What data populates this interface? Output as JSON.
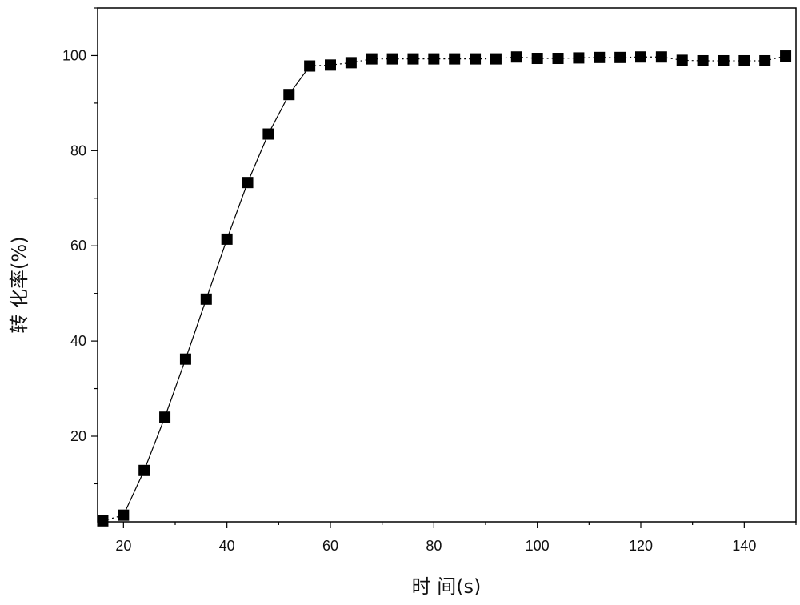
{
  "chart_data": {
    "type": "line",
    "title": "",
    "xlabel": "时 间(s)",
    "ylabel": "转 化率(%)",
    "xlim": [
      15,
      150
    ],
    "ylim": [
      2,
      110
    ],
    "xticks": [
      20,
      40,
      60,
      80,
      100,
      120,
      140
    ],
    "yticks": [
      20,
      40,
      60,
      80,
      100
    ],
    "grid": false,
    "legend": "none",
    "series": [
      {
        "marker": "square",
        "color": "#000000",
        "x": [
          16,
          20,
          24,
          28,
          32,
          36,
          40,
          44,
          48,
          52,
          56,
          60,
          64,
          68,
          72,
          76,
          80,
          84,
          88,
          92,
          96,
          100,
          104,
          108,
          112,
          116,
          120,
          124,
          128,
          132,
          136,
          140,
          144,
          148
        ],
        "y": [
          2.2,
          3.4,
          12.8,
          24.0,
          36.2,
          48.8,
          61.4,
          73.3,
          83.5,
          91.8,
          97.8,
          98.0,
          98.5,
          99.3,
          99.3,
          99.3,
          99.3,
          99.3,
          99.3,
          99.3,
          99.7,
          99.4,
          99.4,
          99.5,
          99.6,
          99.6,
          99.7,
          99.7,
          99.0,
          98.9,
          98.9,
          98.9,
          98.9,
          99.9
        ]
      }
    ]
  }
}
